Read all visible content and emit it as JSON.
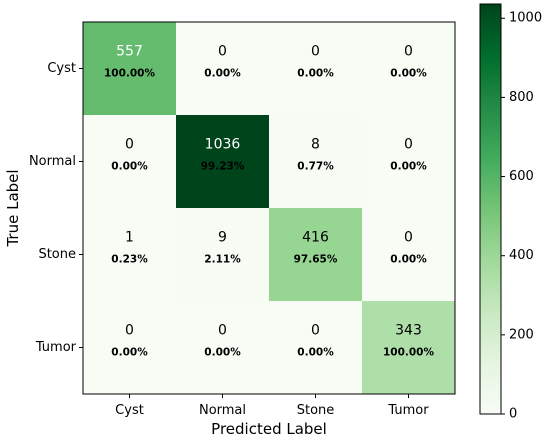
{
  "chart_data": {
    "type": "heatmap",
    "title": "",
    "xlabel": "Predicted Label",
    "ylabel": "True Label",
    "x_categories": [
      "Cyst",
      "Normal",
      "Stone",
      "Tumor"
    ],
    "y_categories": [
      "Cyst",
      "Normal",
      "Stone",
      "Tumor"
    ],
    "values": [
      [
        557,
        0,
        0,
        0
      ],
      [
        0,
        1036,
        8,
        0
      ],
      [
        1,
        9,
        416,
        0
      ],
      [
        0,
        0,
        0,
        343
      ]
    ],
    "percentages": [
      [
        "100.00%",
        "0.00%",
        "0.00%",
        "0.00%"
      ],
      [
        "0.00%",
        "99.23%",
        "0.77%",
        "0.00%"
      ],
      [
        "0.23%",
        "2.11%",
        "97.65%",
        "0.00%"
      ],
      [
        "0.00%",
        "0.00%",
        "0.00%",
        "100.00%"
      ]
    ],
    "colormap": "Greens",
    "colorbar": {
      "range": [
        0,
        1036
      ],
      "ticks": [
        0,
        200,
        400,
        600,
        800,
        1000
      ]
    }
  }
}
